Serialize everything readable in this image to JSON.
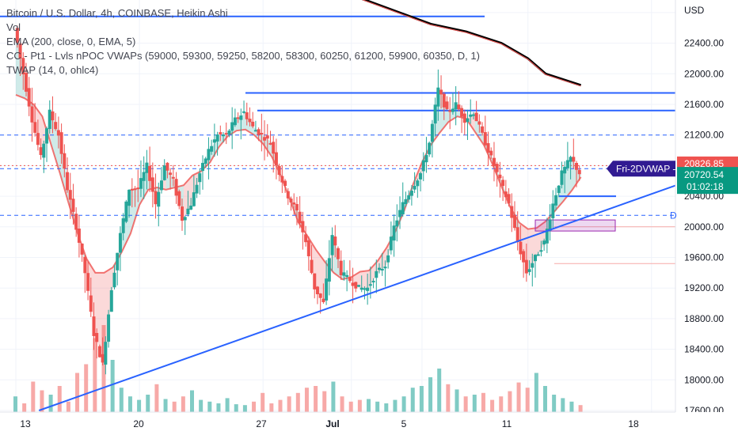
{
  "legend": {
    "title": "Bitcoin / U.S. Dollar, 4h, COINBASE, Heikin Ashi",
    "vol": "Vol",
    "ema": "EMA (200, close, 0, EMA, 5)",
    "cc": "CC - Pt1 - Lvls nPOC VWAPs (59000, 59300, 59250, 58200, 58300, 60250, 61200, 59900, 60350, D, 1)",
    "twap": "TWAP (14, 0, ohlc4)"
  },
  "price_axis": {
    "currency": "USD",
    "ticks": [
      "22400.00",
      "22000.00",
      "21600.00",
      "21200.00",
      "20800.00",
      "20400.00",
      "20000.00",
      "19600.00",
      "19200.00",
      "18800.00",
      "18400.00",
      "18000.00",
      "17600.00"
    ]
  },
  "price_labels": {
    "upper_value": "20826.85",
    "current_value": "20720.54",
    "countdown": "01:02:18",
    "vwap_tag": "Fri-2DVWAP -",
    "right_marker": "D"
  },
  "time_axis": {
    "ticks": [
      "13",
      "20",
      "27",
      "Jul",
      "5",
      "11",
      "18"
    ]
  },
  "colors": {
    "up": "#26a69a",
    "down": "#ef5350",
    "trendline": "#2962ff",
    "upper_label_bg": "#ef5350",
    "current_label_bg": "#089981",
    "vwap_tag_bg": "#311b92"
  },
  "chart_data": {
    "type": "candlestick",
    "title": "Bitcoin / U.S. Dollar, 4h, COINBASE, Heikin Ashi",
    "ylabel": "USD",
    "ylim": [
      17600,
      22800
    ],
    "xticks": [
      "13",
      "20",
      "27",
      "Jul",
      "5",
      "11",
      "18"
    ],
    "close_path": [
      [
        13.0,
        22600
      ],
      [
        13.5,
        22000
      ],
      [
        14.0,
        21400
      ],
      [
        14.5,
        20900
      ],
      [
        15.0,
        21500
      ],
      [
        15.5,
        21200
      ],
      [
        16.0,
        20500
      ],
      [
        16.5,
        20000
      ],
      [
        17.0,
        19400
      ],
      [
        17.5,
        18600
      ],
      [
        18.0,
        18200
      ],
      [
        18.5,
        19200
      ],
      [
        19.0,
        19900
      ],
      [
        19.5,
        20500
      ],
      [
        20.0,
        20500
      ],
      [
        20.5,
        20800
      ],
      [
        21.0,
        20300
      ],
      [
        21.5,
        20800
      ],
      [
        22.0,
        20600
      ],
      [
        22.5,
        20100
      ],
      [
        23.0,
        20300
      ],
      [
        23.5,
        20700
      ],
      [
        24.0,
        21000
      ],
      [
        24.5,
        21200
      ],
      [
        25.0,
        21200
      ],
      [
        25.5,
        21400
      ],
      [
        26.0,
        21500
      ],
      [
        26.5,
        21300
      ],
      [
        27.0,
        21200
      ],
      [
        27.5,
        21100
      ],
      [
        28.0,
        20700
      ],
      [
        28.5,
        20400
      ],
      [
        29.0,
        20200
      ],
      [
        29.5,
        19800
      ],
      [
        30.0,
        19200
      ],
      [
        30.5,
        19000
      ],
      [
        31.0,
        19900
      ],
      [
        31.5,
        19400
      ],
      [
        32.0,
        19300
      ],
      [
        32.5,
        19200
      ],
      [
        33.0,
        19200
      ],
      [
        33.5,
        19400
      ],
      [
        34.0,
        19500
      ],
      [
        34.5,
        20000
      ],
      [
        35.0,
        20300
      ],
      [
        35.5,
        20500
      ],
      [
        36.0,
        20700
      ],
      [
        36.5,
        21100
      ],
      [
        37.0,
        21800
      ],
      [
        37.5,
        21500
      ],
      [
        38.0,
        21600
      ],
      [
        38.5,
        21400
      ],
      [
        39.0,
        21500
      ],
      [
        39.5,
        21200
      ],
      [
        40.0,
        20900
      ],
      [
        40.5,
        20600
      ],
      [
        41.0,
        20300
      ],
      [
        41.5,
        19800
      ],
      [
        42.0,
        19400
      ],
      [
        42.5,
        19600
      ],
      [
        43.0,
        19800
      ],
      [
        43.5,
        20300
      ],
      [
        44.0,
        20700
      ],
      [
        44.5,
        20900
      ],
      [
        45.0,
        20700
      ]
    ],
    "volume_bars": [
      [
        13.0,
        18
      ],
      [
        13.5,
        10
      ],
      [
        14.0,
        35
      ],
      [
        14.5,
        25
      ],
      [
        15.0,
        20
      ],
      [
        15.5,
        30
      ],
      [
        16.0,
        12
      ],
      [
        16.5,
        45
      ],
      [
        17.0,
        55
      ],
      [
        17.5,
        85
      ],
      [
        18.0,
        100
      ],
      [
        18.5,
        60
      ],
      [
        19.0,
        28
      ],
      [
        19.5,
        18
      ],
      [
        20.0,
        14
      ],
      [
        20.5,
        20
      ],
      [
        21.0,
        32
      ],
      [
        21.5,
        15
      ],
      [
        22.0,
        12
      ],
      [
        22.5,
        18
      ],
      [
        23.0,
        25
      ],
      [
        23.5,
        14
      ],
      [
        24.0,
        12
      ],
      [
        24.5,
        10
      ],
      [
        25.0,
        16
      ],
      [
        25.5,
        9
      ],
      [
        26.0,
        8
      ],
      [
        26.5,
        12
      ],
      [
        27.0,
        22
      ],
      [
        27.5,
        10
      ],
      [
        28.0,
        14
      ],
      [
        28.5,
        18
      ],
      [
        29.0,
        22
      ],
      [
        29.5,
        28
      ],
      [
        30.0,
        30
      ],
      [
        30.5,
        24
      ],
      [
        31.0,
        35
      ],
      [
        31.5,
        18
      ],
      [
        32.0,
        12
      ],
      [
        32.5,
        14
      ],
      [
        33.0,
        15
      ],
      [
        33.5,
        12
      ],
      [
        34.0,
        10
      ],
      [
        34.5,
        14
      ],
      [
        35.0,
        18
      ],
      [
        35.5,
        28
      ],
      [
        36.0,
        30
      ],
      [
        36.5,
        40
      ],
      [
        37.0,
        50
      ],
      [
        37.5,
        32
      ],
      [
        38.0,
        26
      ],
      [
        38.5,
        18
      ],
      [
        39.0,
        20
      ],
      [
        39.5,
        22
      ],
      [
        40.0,
        14
      ],
      [
        40.5,
        18
      ],
      [
        41.0,
        24
      ],
      [
        41.5,
        34
      ],
      [
        42.0,
        28
      ],
      [
        42.5,
        45
      ],
      [
        43.0,
        30
      ],
      [
        43.5,
        20
      ],
      [
        44.0,
        16
      ],
      [
        44.5,
        12
      ],
      [
        45.0,
        8
      ]
    ],
    "ema200_segment": [
      [
        30.0,
        23200
      ],
      [
        36.5,
        22650
      ],
      [
        38.5,
        22550
      ],
      [
        40.5,
        22400
      ],
      [
        42.0,
        22200
      ],
      [
        43.0,
        22000
      ],
      [
        45.0,
        21850
      ]
    ],
    "horizontal_levels": [
      22750,
      21750,
      21520,
      21200,
      20800,
      20760,
      20150,
      19520
    ],
    "trendline": [
      [
        17.0,
        17600
      ],
      [
        47.0,
        20550
      ]
    ]
  }
}
